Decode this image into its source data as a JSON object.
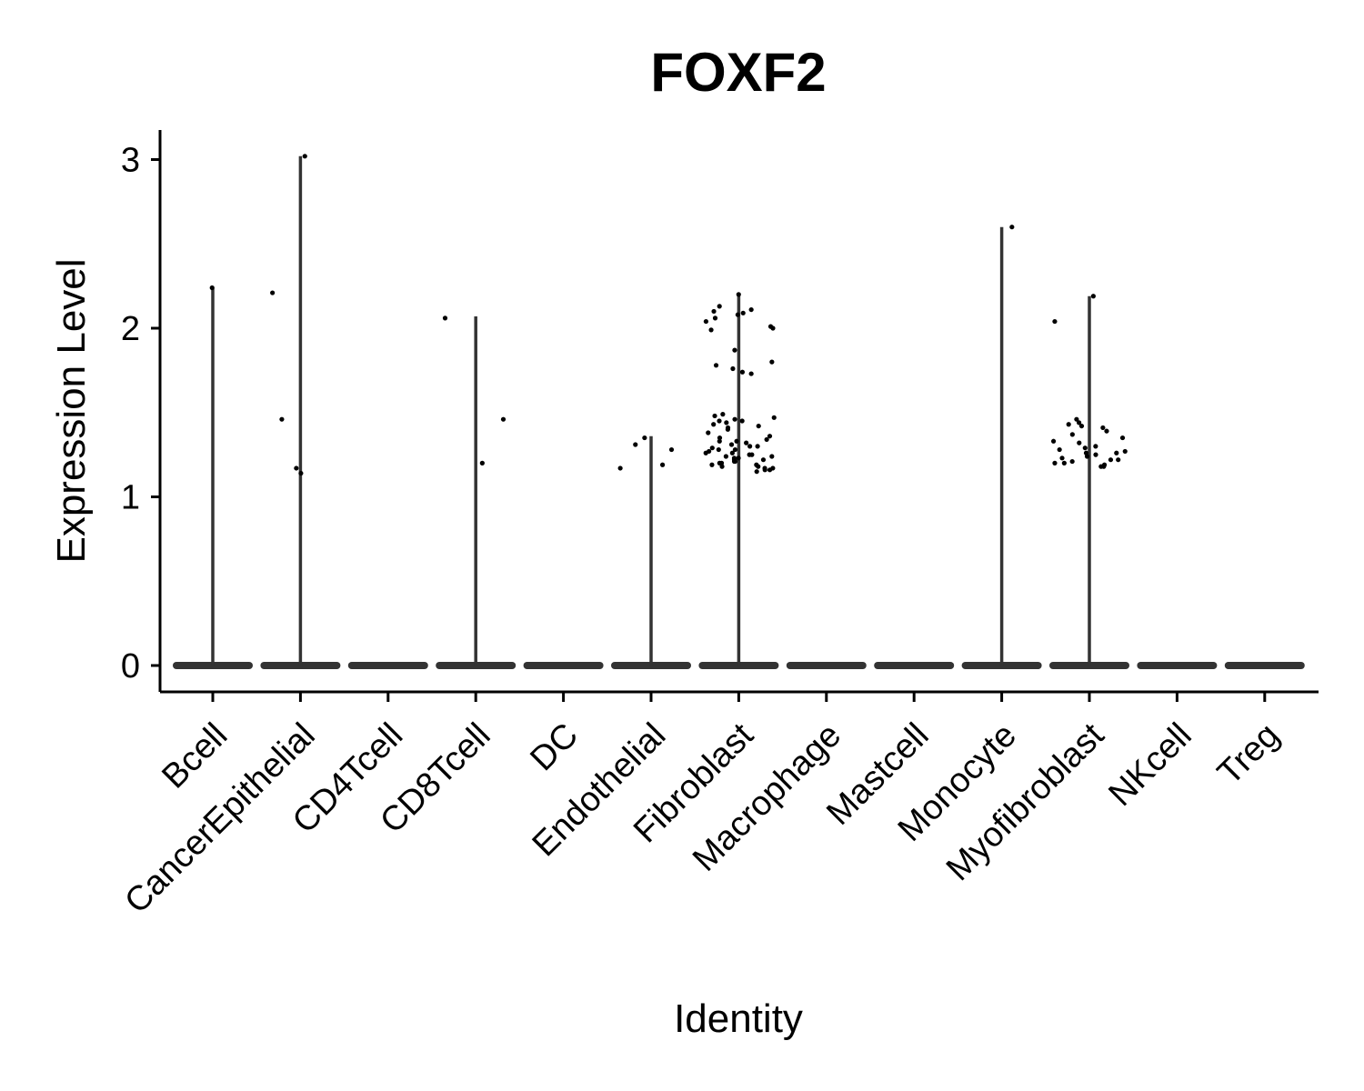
{
  "chart_data": {
    "type": "violin",
    "title": "FOXF2",
    "xlabel": "Identity",
    "ylabel": "Expression Level",
    "ylim": [
      -0.15,
      3.15
    ],
    "yticks": [
      0,
      1,
      2,
      3
    ],
    "grid": false,
    "legend": "none",
    "colors": {
      "violin": "#333333",
      "points": "#000000",
      "axis": "#000000"
    },
    "categories": [
      "Bcell",
      "CancerEpithelial",
      "CD4Tcell",
      "CD8Tcell",
      "DC",
      "Endothelial",
      "Fibroblast",
      "Macrophage",
      "Mastcell",
      "Monocyte",
      "Myofibroblast",
      "NKcell",
      "Treg"
    ],
    "violin_max": [
      2.24,
      3.02,
      0,
      2.07,
      0,
      1.36,
      2.21,
      0,
      0,
      2.6,
      2.19,
      0,
      0
    ],
    "points": [
      {
        "category": "Bcell",
        "values": [
          2.24
        ]
      },
      {
        "category": "CancerEpithelial",
        "values": [
          3.02,
          2.21,
          1.46,
          1.17,
          1.14
        ]
      },
      {
        "category": "CD4Tcell",
        "values": []
      },
      {
        "category": "CD8Tcell",
        "values": [
          2.06,
          1.46,
          1.2
        ]
      },
      {
        "category": "DC",
        "values": []
      },
      {
        "category": "Endothelial",
        "values": [
          1.35,
          1.31,
          1.28,
          1.19,
          1.17
        ]
      },
      {
        "category": "Fibroblast",
        "values": [
          2.2,
          2.13,
          2.11,
          2.1,
          2.09,
          2.08,
          2.06,
          2.04,
          2.01,
          2.0,
          1.99,
          1.87,
          1.8,
          1.78,
          1.76,
          1.74,
          1.73,
          1.49,
          1.48,
          1.47,
          1.46,
          1.45,
          1.45,
          1.44,
          1.43,
          1.42,
          1.41,
          1.4,
          1.38,
          1.36,
          1.35,
          1.34,
          1.33,
          1.33,
          1.32,
          1.31,
          1.3,
          1.3,
          1.29,
          1.28,
          1.28,
          1.27,
          1.26,
          1.26,
          1.25,
          1.25,
          1.24,
          1.24,
          1.23,
          1.23,
          1.22,
          1.22,
          1.21,
          1.21,
          1.2,
          1.2,
          1.19,
          1.19,
          1.18,
          1.18,
          1.17,
          1.17,
          1.16,
          1.16,
          1.15
        ]
      },
      {
        "category": "Macrophage",
        "values": []
      },
      {
        "category": "Mastcell",
        "values": []
      },
      {
        "category": "Monocyte",
        "values": [
          2.6
        ]
      },
      {
        "category": "Myofibroblast",
        "values": [
          2.19,
          2.04,
          1.46,
          1.44,
          1.43,
          1.42,
          1.41,
          1.39,
          1.37,
          1.35,
          1.33,
          1.32,
          1.3,
          1.29,
          1.28,
          1.27,
          1.26,
          1.26,
          1.25,
          1.24,
          1.23,
          1.22,
          1.22,
          1.21,
          1.2,
          1.2,
          1.19,
          1.18,
          1.18
        ]
      },
      {
        "category": "NKcell",
        "values": []
      },
      {
        "category": "Treg",
        "values": []
      }
    ]
  }
}
